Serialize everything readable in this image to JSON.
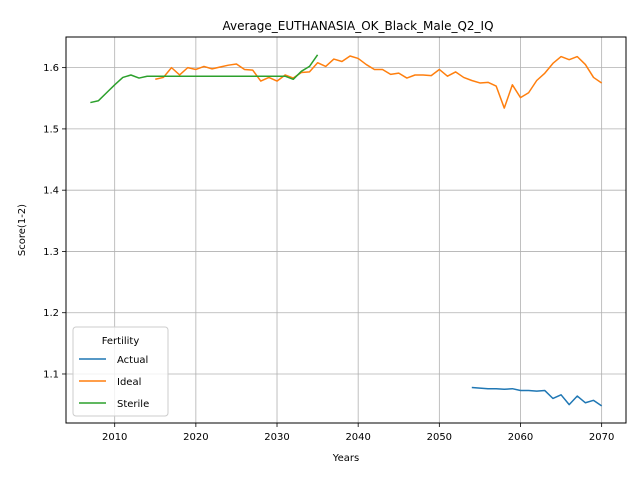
{
  "chart_data": {
    "type": "line",
    "title": "Average_EUTHANASIA_OK_Black_Male_Q2_IQ",
    "xlabel": "Years",
    "ylabel": "Score(1-2)",
    "xlim": [
      2004,
      2073
    ],
    "ylim": [
      1.02,
      1.65
    ],
    "xticks": [
      2010,
      2020,
      2030,
      2040,
      2050,
      2060,
      2070
    ],
    "yticks": [
      1.1,
      1.2,
      1.3,
      1.4,
      1.5,
      1.6
    ],
    "grid": true,
    "legend": {
      "title": "Fertility",
      "placement": "lower-left"
    },
    "series": [
      {
        "name": "Actual",
        "color": "#1f77b4",
        "x": [
          2054,
          2055,
          2056,
          2057,
          2058,
          2059,
          2060,
          2061,
          2062,
          2063,
          2064,
          2065,
          2066,
          2067,
          2068,
          2069,
          2070
        ],
        "y": [
          1.078,
          1.077,
          1.076,
          1.076,
          1.075,
          1.076,
          1.073,
          1.073,
          1.072,
          1.073,
          1.06,
          1.066,
          1.05,
          1.064,
          1.053,
          1.057,
          1.048
        ]
      },
      {
        "name": "Ideal",
        "color": "#ff7f0e",
        "x": [
          2015,
          2016,
          2017,
          2018,
          2019,
          2020,
          2021,
          2022,
          2023,
          2024,
          2025,
          2026,
          2027,
          2028,
          2029,
          2030,
          2031,
          2032,
          2033,
          2034,
          2035,
          2036,
          2037,
          2038,
          2039,
          2040,
          2041,
          2042,
          2043,
          2044,
          2045,
          2046,
          2047,
          2048,
          2049,
          2050,
          2051,
          2052,
          2053,
          2054,
          2055,
          2056,
          2057,
          2058,
          2059,
          2060,
          2061,
          2062,
          2063,
          2064,
          2065,
          2066,
          2067,
          2068,
          2069,
          2070
        ],
        "y": [
          1.581,
          1.584,
          1.6,
          1.588,
          1.6,
          1.597,
          1.602,
          1.598,
          1.601,
          1.604,
          1.606,
          1.597,
          1.596,
          1.578,
          1.584,
          1.578,
          1.588,
          1.583,
          1.592,
          1.593,
          1.608,
          1.602,
          1.614,
          1.61,
          1.619,
          1.615,
          1.605,
          1.597,
          1.597,
          1.589,
          1.591,
          1.583,
          1.588,
          1.588,
          1.587,
          1.597,
          1.586,
          1.593,
          1.584,
          1.579,
          1.575,
          1.576,
          1.57,
          1.534,
          1.572,
          1.551,
          1.559,
          1.579,
          1.591,
          1.607,
          1.618,
          1.613,
          1.618,
          1.605,
          1.584,
          1.575
        ]
      },
      {
        "name": "Sterile",
        "color": "#2ca02c",
        "x": [
          2007,
          2008,
          2009,
          2010,
          2011,
          2012,
          2013,
          2014,
          2015,
          2016,
          2017,
          2018,
          2019,
          2020,
          2021,
          2022,
          2023,
          2024,
          2025,
          2026,
          2027,
          2028,
          2029,
          2030,
          2031,
          2032,
          2033,
          2034,
          2035
        ],
        "y": [
          1.543,
          1.546,
          1.559,
          1.572,
          1.584,
          1.588,
          1.583,
          1.586,
          1.586,
          1.586,
          1.586,
          1.586,
          1.586,
          1.586,
          1.586,
          1.586,
          1.586,
          1.586,
          1.586,
          1.586,
          1.586,
          1.586,
          1.586,
          1.586,
          1.586,
          1.581,
          1.594,
          1.602,
          1.621
        ]
      }
    ]
  }
}
